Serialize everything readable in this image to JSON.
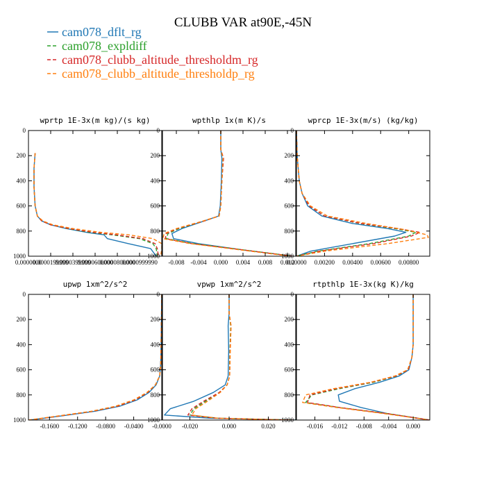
{
  "title": "CLUBB VAR at90E,-45N",
  "legend": [
    {
      "name": "cam078_dflt_rg",
      "color": "#1f77b4",
      "dash": "solid"
    },
    {
      "name": "cam078_expldiff",
      "color": "#2ca02c",
      "dash": "dashed"
    },
    {
      "name": "cam078_clubb_altitude_thresholdm_rg",
      "color": "#d62728",
      "dash": "dashed"
    },
    {
      "name": "cam078_clubb_altitude_thresholdp_rg",
      "color": "#ff7f0e",
      "dash": "dashed"
    }
  ],
  "chart_data": [
    {
      "type": "line",
      "title": "wprtp  1E-3x(m kg)/(s kg)",
      "xlabel": "",
      "ylabel": "",
      "xlim": [
        0.0,
        0.00012
      ],
      "ylim": [
        1000,
        0
      ],
      "xticks": [
        0.0,
        2e-05,
        4e-05,
        6e-05,
        8e-05,
        0.0001
      ],
      "xtick_labels": [
        "0.0000000",
        "0.0000199999",
        "0.0000399999",
        "0.0000600000",
        "0.0000800000",
        "0.0000999990"
      ],
      "yticks": [
        0,
        200,
        400,
        600,
        800,
        1000
      ],
      "ytick_labels": [
        "0",
        "200",
        "400",
        "600",
        "800",
        "1000"
      ],
      "series": [
        {
          "name": "cam078_dflt_rg",
          "x": [
            6e-06,
            5e-06,
            5e-06,
            6e-06,
            8e-06,
            1.2e-05,
            2e-05,
            3.4e-05,
            5.2e-05,
            6.8e-05,
            7.1e-05,
            9e-05,
            0.00011,
            0.000115
          ],
          "y": [
            180,
            300,
            450,
            600,
            680,
            720,
            750,
            780,
            810,
            830,
            860,
            900,
            940,
            1000
          ]
        },
        {
          "name": "cam078_expldiff",
          "x": [
            6e-06,
            5e-06,
            5e-06,
            6e-06,
            8e-06,
            1.2e-05,
            2e-05,
            3.5e-05,
            5.5e-05,
            7.5e-05,
            0.0001,
            0.000112,
            0.000115,
            0.000116
          ],
          "y": [
            180,
            300,
            450,
            600,
            680,
            720,
            750,
            780,
            810,
            830,
            860,
            900,
            940,
            1000
          ]
        },
        {
          "name": "cam078_clubb_altitude_thresholdm_rg",
          "x": [
            6e-06,
            5e-06,
            5e-06,
            6e-06,
            8e-06,
            1.2e-05,
            2e-05,
            3.6e-05,
            5.8e-05,
            7.9e-05,
            0.000103,
            0.000114,
            0.000116,
            0.000117
          ],
          "y": [
            180,
            300,
            450,
            600,
            680,
            720,
            750,
            780,
            810,
            830,
            860,
            900,
            940,
            1000
          ]
        },
        {
          "name": "cam078_clubb_altitude_thresholdp_rg",
          "x": [
            6e-06,
            5e-06,
            5e-06,
            6e-06,
            8e-06,
            1.3e-05,
            2.2e-05,
            4e-05,
            6.5e-05,
            9e-05,
            0.000112,
            0.00012,
            0.00012,
            0.000119
          ],
          "y": [
            180,
            300,
            450,
            600,
            680,
            720,
            750,
            780,
            810,
            830,
            860,
            900,
            940,
            1000
          ]
        }
      ]
    },
    {
      "type": "line",
      "title": "wpthlp  1x(m K)/s",
      "xlabel": "",
      "ylabel": "",
      "xlim": [
        -0.0105,
        0.0135
      ],
      "ylim": [
        1000,
        0
      ],
      "xticks": [
        -0.008,
        -0.004,
        0.0,
        0.004,
        0.008,
        0.012
      ],
      "xtick_labels": [
        "-0.008",
        "-0.004",
        "0.000",
        "0.004",
        "0.008",
        "0.012"
      ],
      "yticks": [
        0,
        200,
        400,
        600,
        800,
        1000
      ],
      "ytick_labels": [
        "0",
        "200",
        "400",
        "600",
        "800",
        "1000"
      ],
      "series": [
        {
          "name": "cam078_dflt_rg",
          "x": [
            0.0,
            0.0,
            0.0002,
            0.0001,
            -0.0001,
            -0.0004,
            -0.003,
            -0.007,
            -0.0088,
            -0.0085,
            -0.004,
            0.004,
            0.013
          ],
          "y": [
            0,
            150,
            220,
            400,
            600,
            680,
            720,
            780,
            820,
            860,
            900,
            950,
            1000
          ]
        },
        {
          "name": "cam078_expldiff",
          "x": [
            0.0,
            0.0,
            0.0004,
            0.0002,
            0.0,
            -0.0003,
            -0.003,
            -0.0075,
            -0.0095,
            -0.0098,
            -0.005,
            0.004,
            0.013
          ],
          "y": [
            0,
            150,
            220,
            400,
            600,
            680,
            720,
            780,
            820,
            860,
            900,
            950,
            1000
          ]
        },
        {
          "name": "cam078_clubb_altitude_thresholdm_rg",
          "x": [
            0.0,
            0.0,
            0.0005,
            0.0002,
            0.0,
            -0.0003,
            -0.003,
            -0.0078,
            -0.0098,
            -0.01,
            -0.0052,
            0.004,
            0.013
          ],
          "y": [
            0,
            150,
            220,
            400,
            600,
            680,
            720,
            780,
            820,
            860,
            900,
            950,
            1000
          ]
        },
        {
          "name": "cam078_clubb_altitude_thresholdp_rg",
          "x": [
            0.0,
            0.0,
            0.0004,
            0.0002,
            0.0,
            -0.0003,
            -0.0032,
            -0.008,
            -0.0102,
            -0.0104,
            -0.0055,
            0.0035,
            0.0125
          ],
          "y": [
            0,
            150,
            220,
            400,
            600,
            680,
            720,
            780,
            820,
            860,
            900,
            950,
            1000
          ]
        }
      ]
    },
    {
      "type": "line",
      "title": "wprcp  1E-3x(m/s) (kg/kg)",
      "xlabel": "",
      "ylabel": "",
      "xlim": [
        0.0,
        0.0095
      ],
      "ylim": [
        1000,
        0
      ],
      "xticks": [
        0.0,
        0.002,
        0.004,
        0.006,
        0.008
      ],
      "xtick_labels": [
        "0.00000",
        "0.00200",
        "0.00400",
        "0.00600",
        "0.00800"
      ],
      "yticks": [
        0,
        200,
        400,
        600,
        800,
        1000
      ],
      "ytick_labels": [
        "0",
        "200",
        "400",
        "600",
        "800",
        "1000"
      ],
      "series": [
        {
          "name": "cam078_dflt_rg",
          "x": [
            0.0,
            5e-05,
            0.0002,
            0.0004,
            0.0008,
            0.0018,
            0.004,
            0.0065,
            0.0078,
            0.007,
            0.004,
            0.001,
            0.0
          ],
          "y": [
            0,
            200,
            400,
            500,
            600,
            680,
            740,
            780,
            810,
            840,
            900,
            960,
            1000
          ]
        },
        {
          "name": "cam078_expldiff",
          "x": [
            0.0,
            5e-05,
            0.0002,
            0.0004,
            0.0009,
            0.002,
            0.0045,
            0.007,
            0.0085,
            0.008,
            0.0052,
            0.0015,
            0.0
          ],
          "y": [
            0,
            200,
            400,
            500,
            600,
            680,
            740,
            780,
            810,
            840,
            900,
            960,
            1000
          ]
        },
        {
          "name": "cam078_clubb_altitude_thresholdm_rg",
          "x": [
            0.0,
            5e-05,
            0.0002,
            0.0004,
            0.0009,
            0.002,
            0.0046,
            0.0072,
            0.0088,
            0.0082,
            0.0055,
            0.0016,
            0.0
          ],
          "y": [
            0,
            200,
            400,
            500,
            600,
            680,
            740,
            780,
            810,
            840,
            900,
            960,
            1000
          ]
        },
        {
          "name": "cam078_clubb_altitude_thresholdp_rg",
          "x": [
            0.0,
            5e-05,
            0.0002,
            0.0004,
            0.001,
            0.0022,
            0.005,
            0.0078,
            0.0093,
            0.0094,
            0.0065,
            0.002,
            0.0
          ],
          "y": [
            0,
            200,
            400,
            500,
            600,
            680,
            740,
            790,
            830,
            850,
            900,
            960,
            1000
          ]
        }
      ]
    },
    {
      "type": "line",
      "title": "upwp  1xm^2/s^2",
      "xlabel": "",
      "ylabel": "",
      "xlim": [
        -0.19,
        0.0
      ],
      "ylim": [
        1000,
        0
      ],
      "xticks": [
        -0.16,
        -0.12,
        -0.08,
        -0.04,
        0.0
      ],
      "xtick_labels": [
        "-0.1600",
        "-0.1200",
        "-0.0800",
        "-0.0400",
        "-0.0000"
      ],
      "yticks": [
        0,
        200,
        400,
        600,
        800,
        1000
      ],
      "ytick_labels": [
        "0",
        "200",
        "400",
        "600",
        "800",
        "1000"
      ],
      "series": [
        {
          "name": "cam078_dflt_rg",
          "x": [
            0.0,
            -0.0005,
            -0.001,
            -0.0015,
            -0.003,
            -0.008,
            -0.018,
            -0.035,
            -0.06,
            -0.095,
            -0.14,
            -0.188
          ],
          "y": [
            0,
            200,
            400,
            550,
            650,
            720,
            780,
            840,
            890,
            930,
            965,
            1000
          ]
        },
        {
          "name": "cam078_expldiff",
          "x": [
            0.0,
            -0.0005,
            -0.001,
            -0.0015,
            -0.003,
            -0.009,
            -0.02,
            -0.038,
            -0.063,
            -0.098,
            -0.142,
            -0.188
          ],
          "y": [
            0,
            200,
            400,
            550,
            650,
            720,
            780,
            840,
            890,
            930,
            965,
            1000
          ]
        },
        {
          "name": "cam078_clubb_altitude_thresholdm_rg",
          "x": [
            0.0,
            -0.0005,
            -0.001,
            -0.0015,
            -0.003,
            -0.009,
            -0.02,
            -0.038,
            -0.063,
            -0.098,
            -0.142,
            -0.188
          ],
          "y": [
            0,
            200,
            400,
            550,
            650,
            720,
            780,
            840,
            890,
            930,
            965,
            1000
          ]
        },
        {
          "name": "cam078_clubb_altitude_thresholdp_rg",
          "x": [
            0.0,
            -0.0003,
            -0.0008,
            -0.0013,
            -0.003,
            -0.009,
            -0.021,
            -0.04,
            -0.066,
            -0.1,
            -0.145,
            -0.19
          ],
          "y": [
            0,
            200,
            400,
            550,
            650,
            720,
            780,
            840,
            890,
            930,
            965,
            1000
          ]
        }
      ]
    },
    {
      "type": "line",
      "title": "vpwp  1xm^2/s^2",
      "xlabel": "",
      "ylabel": "",
      "xlim": [
        -0.034,
        0.034
      ],
      "ylim": [
        1000,
        0
      ],
      "xticks": [
        -0.02,
        0.0,
        0.02
      ],
      "xtick_labels": [
        "-0.020",
        "0.000",
        "0.020"
      ],
      "yticks": [
        0,
        200,
        400,
        600,
        800,
        1000
      ],
      "ytick_labels": [
        "0",
        "200",
        "400",
        "600",
        "800",
        "1000"
      ],
      "series": [
        {
          "name": "cam078_dflt_rg",
          "x": [
            0.0,
            0.0,
            -0.0005,
            -0.0002,
            -0.0005,
            -0.002,
            -0.008,
            -0.018,
            -0.03,
            -0.033,
            -0.01,
            0.02,
            0.034
          ],
          "y": [
            0,
            150,
            250,
            450,
            650,
            720,
            780,
            850,
            910,
            960,
            985,
            995,
            1000
          ]
        },
        {
          "name": "cam078_expldiff",
          "x": [
            0.0,
            0.0,
            0.0008,
            0.0004,
            0.0002,
            -0.001,
            -0.005,
            -0.012,
            -0.018,
            -0.02,
            -0.006,
            0.02,
            0.034
          ],
          "y": [
            0,
            150,
            250,
            450,
            650,
            720,
            780,
            850,
            910,
            960,
            985,
            995,
            1000
          ]
        },
        {
          "name": "cam078_clubb_altitude_thresholdm_rg",
          "x": [
            0.0,
            0.0,
            0.001,
            0.0005,
            0.0003,
            -0.001,
            -0.005,
            -0.013,
            -0.019,
            -0.021,
            -0.007,
            0.018,
            0.033
          ],
          "y": [
            0,
            150,
            250,
            450,
            650,
            720,
            780,
            850,
            910,
            960,
            985,
            995,
            1000
          ]
        },
        {
          "name": "cam078_clubb_altitude_thresholdp_rg",
          "x": [
            0.0,
            0.0,
            0.001,
            0.0006,
            0.0003,
            -0.001,
            -0.0045,
            -0.011,
            -0.017,
            -0.019,
            -0.006,
            0.017,
            0.032
          ],
          "y": [
            0,
            150,
            250,
            450,
            650,
            720,
            780,
            850,
            910,
            960,
            985,
            995,
            1000
          ]
        }
      ]
    },
    {
      "type": "line",
      "title": "rtpthlp  1E-3x(kg K)/kg",
      "xlabel": "",
      "ylabel": "",
      "xlim": [
        -0.019,
        0.0027
      ],
      "ylim": [
        1000,
        0
      ],
      "xticks": [
        -0.016,
        -0.012,
        -0.008,
        -0.004,
        0.0
      ],
      "xtick_labels": [
        "-0.016",
        "-0.012",
        "-0.008",
        "-0.004",
        "0.000"
      ],
      "yticks": [
        0,
        200,
        400,
        600,
        800,
        1000
      ],
      "ytick_labels": [
        "0",
        "200",
        "400",
        "600",
        "800",
        "1000"
      ],
      "series": [
        {
          "name": "cam078_dflt_rg",
          "x": [
            0.0,
            0.0,
            0.0,
            -0.0002,
            -0.0007,
            -0.0023,
            -0.0055,
            -0.0095,
            -0.0122,
            -0.012,
            -0.0085,
            -0.004,
            0.0027
          ],
          "y": [
            0,
            200,
            400,
            500,
            600,
            650,
            700,
            750,
            800,
            850,
            900,
            950,
            1000
          ]
        },
        {
          "name": "cam078_expldiff",
          "x": [
            0.0,
            0.0,
            0.0,
            -0.0002,
            -0.0008,
            -0.0027,
            -0.0065,
            -0.012,
            -0.0165,
            -0.0175,
            -0.012,
            -0.004,
            0.0027
          ],
          "y": [
            0,
            200,
            400,
            500,
            600,
            650,
            700,
            750,
            800,
            860,
            900,
            950,
            1000
          ]
        },
        {
          "name": "cam078_clubb_altitude_thresholdm_rg",
          "x": [
            0.0,
            0.0,
            0.0,
            -0.0002,
            -0.0008,
            -0.0028,
            -0.0068,
            -0.0125,
            -0.0168,
            -0.0172,
            -0.012,
            -0.004,
            0.0027
          ],
          "y": [
            0,
            200,
            400,
            500,
            600,
            650,
            700,
            750,
            800,
            860,
            900,
            950,
            1000
          ]
        },
        {
          "name": "cam078_clubb_altitude_thresholdp_rg",
          "x": [
            0.0,
            0.0,
            0.0,
            -0.0002,
            -0.0009,
            -0.003,
            -0.007,
            -0.013,
            -0.0175,
            -0.018,
            -0.0125,
            -0.0045,
            0.0027
          ],
          "y": [
            0,
            200,
            400,
            500,
            600,
            650,
            700,
            750,
            800,
            860,
            900,
            950,
            1000
          ]
        }
      ]
    }
  ]
}
